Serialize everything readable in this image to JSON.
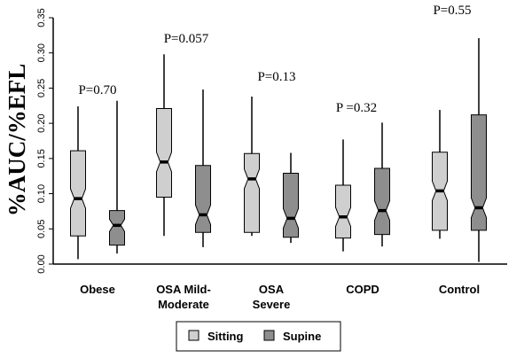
{
  "chart_data": {
    "type": "boxplot",
    "ylabel": "%AUC/%EFL",
    "ylim": [
      0.0,
      0.35
    ],
    "yticks": [
      "0.00",
      "0.05",
      "0.10",
      "0.15",
      "0.20",
      "0.25",
      "0.30",
      "0.35"
    ],
    "categories": [
      [
        "Obese"
      ],
      [
        "OSA Mild-",
        "Moderate"
      ],
      [
        "OSA",
        "Severe"
      ],
      [
        "COPD"
      ],
      [
        "Control"
      ]
    ],
    "p_values": [
      "P=0.70",
      "P=0.057",
      "P=0.13",
      "P =0.32",
      "P=0.55"
    ],
    "legend": {
      "sitting": "Sitting",
      "supine": "Supine"
    },
    "colors": {
      "sitting": "#cfcfcf",
      "supine": "#8e8e8e"
    },
    "series": [
      {
        "key": "sitting",
        "boxes": [
          {
            "min": 0.007,
            "q1": 0.04,
            "median": 0.093,
            "q3": 0.161,
            "max": 0.224
          },
          {
            "min": 0.04,
            "q1": 0.095,
            "median": 0.145,
            "q3": 0.221,
            "max": 0.298
          },
          {
            "min": 0.04,
            "q1": 0.045,
            "median": 0.121,
            "q3": 0.157,
            "max": 0.238
          },
          {
            "min": 0.018,
            "q1": 0.037,
            "median": 0.067,
            "q3": 0.112,
            "max": 0.177
          },
          {
            "min": 0.036,
            "q1": 0.048,
            "median": 0.104,
            "q3": 0.159,
            "max": 0.219
          }
        ]
      },
      {
        "key": "supine",
        "boxes": [
          {
            "min": 0.015,
            "q1": 0.027,
            "median": 0.055,
            "q3": 0.076,
            "max": 0.232
          },
          {
            "min": 0.024,
            "q1": 0.045,
            "median": 0.07,
            "q3": 0.14,
            "max": 0.248
          },
          {
            "min": 0.03,
            "q1": 0.038,
            "median": 0.065,
            "q3": 0.129,
            "max": 0.158
          },
          {
            "min": 0.025,
            "q1": 0.042,
            "median": 0.076,
            "q3": 0.136,
            "max": 0.201
          },
          {
            "min": 0.003,
            "q1": 0.048,
            "median": 0.08,
            "q3": 0.212,
            "max": 0.321
          }
        ]
      }
    ]
  }
}
